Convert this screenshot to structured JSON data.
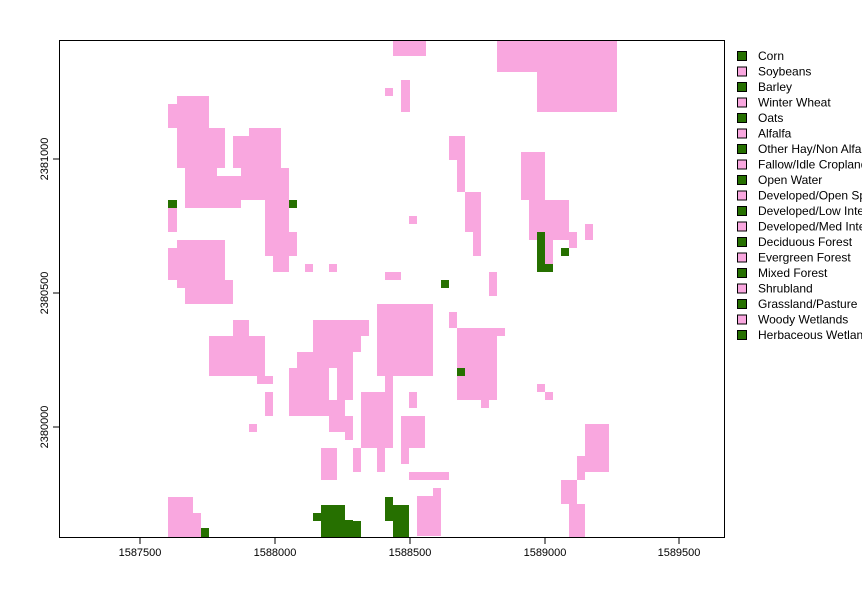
{
  "map": {
    "colors": {
      "pink": "#f9a7df",
      "green": "#267000",
      "frame": "#000000"
    },
    "x_ticks": [
      "1587500",
      "1588000",
      "1588500",
      "1589000",
      "1589500"
    ],
    "y_ticks": [
      "2380000",
      "2380500",
      "2381000"
    ],
    "legend": [
      {
        "label": "Corn",
        "color": "green"
      },
      {
        "label": "Soybeans",
        "color": "pink"
      },
      {
        "label": "Barley",
        "color": "green"
      },
      {
        "label": "Winter Wheat",
        "color": "pink"
      },
      {
        "label": "Oats",
        "color": "green"
      },
      {
        "label": "Alfalfa",
        "color": "pink"
      },
      {
        "label": "Other Hay/Non Alfalfa",
        "color": "green"
      },
      {
        "label": "Fallow/Idle Cropland",
        "color": "pink"
      },
      {
        "label": "Open Water",
        "color": "green"
      },
      {
        "label": "Developed/Open Space",
        "color": "pink"
      },
      {
        "label": "Developed/Low Intensity",
        "color": "green"
      },
      {
        "label": "Developed/Med Intensity",
        "color": "pink"
      },
      {
        "label": "Deciduous Forest",
        "color": "green"
      },
      {
        "label": "Evergreen Forest",
        "color": "pink"
      },
      {
        "label": "Mixed Forest",
        "color": "green"
      },
      {
        "label": "Shrubland",
        "color": "pink"
      },
      {
        "label": "Grassland/Pasture",
        "color": "green"
      },
      {
        "label": "Woody Wetlands",
        "color": "pink"
      },
      {
        "label": "Herbaceous Wetlands",
        "color": "green"
      }
    ]
  }
}
